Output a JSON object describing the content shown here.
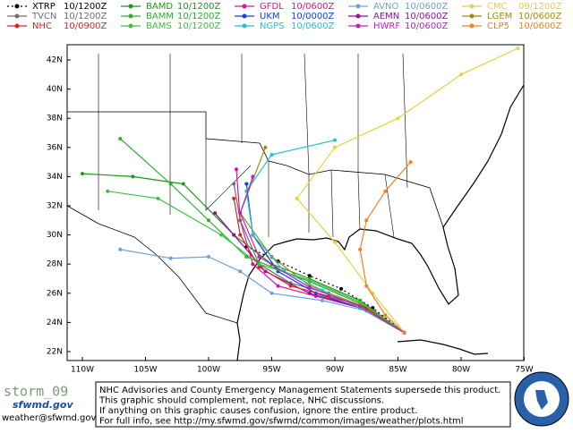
{
  "legend": [
    {
      "name": "XTRP",
      "time": "10/1200Z",
      "color": "#000000"
    },
    {
      "name": "BAMD",
      "time": "10/1200Z",
      "color": "#1a9a1a"
    },
    {
      "name": "GFDL",
      "time": "10/0600Z",
      "color": "#e0109a"
    },
    {
      "name": "AVNO",
      "time": "10/0600Z",
      "color": "#6fa0d8"
    },
    {
      "name": "CMC",
      "time": "09/1200Z",
      "color": "#e8d040"
    },
    {
      "name": "TVCN",
      "time": "10/1200Z",
      "color": "#707070"
    },
    {
      "name": "BAMM",
      "time": "10/1200Z",
      "color": "#30b030"
    },
    {
      "name": "UKM",
      "time": "10/0000Z",
      "color": "#1040e0"
    },
    {
      "name": "AEMN",
      "time": "10/0600Z",
      "color": "#9010a0"
    },
    {
      "name": "LGEM",
      "time": "10/0600Z",
      "color": "#a08a10"
    },
    {
      "name": "NHC",
      "time": "10/0900Z",
      "color": "#e02020"
    },
    {
      "name": "BAMS",
      "time": "10/1200Z",
      "color": "#40c040"
    },
    {
      "name": "NGPS",
      "time": "10/0600Z",
      "color": "#20c0d0"
    },
    {
      "name": "HWRF",
      "time": "10/0600Z",
      "color": "#c020c0"
    },
    {
      "name": "CLP5",
      "time": "10/0600Z",
      "color": "#f08020"
    }
  ],
  "tracks": [
    {
      "model": "XTRP",
      "lon": [
        -84.5,
        -87,
        -89.5,
        -92,
        -94.5,
        -97
      ],
      "lat": [
        23.3,
        25,
        26.3,
        27.2,
        28.2,
        29.2
      ]
    },
    {
      "model": "BAMD",
      "lon": [
        -84.5,
        -88,
        -92,
        -95,
        -98,
        -102,
        -106,
        -110
      ],
      "lat": [
        23.3,
        25.5,
        27,
        28,
        30,
        33.5,
        34,
        34.2
      ]
    },
    {
      "model": "GFDL",
      "lon": [
        -84.5,
        -88,
        -91.5,
        -94.5,
        -96.5,
        -97.5,
        -97.8
      ],
      "lat": [
        23.3,
        25,
        25.8,
        26.5,
        28,
        31,
        34.5
      ]
    },
    {
      "model": "AVNO",
      "lon": [
        -84.5,
        -87.5,
        -91,
        -95,
        -97.5,
        -100,
        -103,
        -107
      ],
      "lat": [
        23.3,
        24.8,
        25.5,
        26,
        27.5,
        28.5,
        28.4,
        29
      ]
    },
    {
      "model": "CMC",
      "lon": [
        -84.5,
        -87,
        -90,
        -93,
        -90,
        -85,
        -80,
        -75.5
      ],
      "lat": [
        23.3,
        26,
        29.5,
        32.5,
        36,
        38,
        41,
        42.8
      ]
    },
    {
      "model": "TVCN",
      "lon": [
        -84.5,
        -87.5,
        -90.5,
        -93.5,
        -96,
        -97.5,
        -98
      ],
      "lat": [
        23.3,
        25,
        26,
        26.7,
        28,
        31,
        33.5
      ]
    },
    {
      "model": "BAMM",
      "lon": [
        -84.5,
        -88,
        -92,
        -97,
        -100,
        -103,
        -107
      ],
      "lat": [
        23.3,
        25.3,
        26.8,
        28.5,
        31,
        33.5,
        36.6
      ]
    },
    {
      "model": "UKM",
      "lon": [
        -84.5,
        -88,
        -91.5,
        -94.5,
        -96.5,
        -97
      ],
      "lat": [
        23.3,
        25,
        26,
        27.5,
        30,
        33.5
      ]
    },
    {
      "model": "AEMN",
      "lon": [
        -84.5,
        -88,
        -92,
        -95.5,
        -98,
        -99.5
      ],
      "lat": [
        23.3,
        25,
        26,
        27.5,
        30,
        31.5
      ]
    },
    {
      "model": "LGEM",
      "lon": [
        -84.5,
        -88,
        -92,
        -95,
        -97.5,
        -95.5
      ],
      "lat": [
        23.3,
        25.2,
        26.5,
        28.5,
        31.5,
        36
      ]
    },
    {
      "model": "NHC",
      "lon": [
        -84.5,
        -87.5,
        -90.5,
        -93.5,
        -96,
        -97.5,
        -98
      ],
      "lat": [
        23.3,
        25,
        25.8,
        26.5,
        27.8,
        30,
        32.5
      ]
    },
    {
      "model": "BAMS",
      "lon": [
        -84.5,
        -88,
        -92,
        -96,
        -99,
        -104,
        -108
      ],
      "lat": [
        23.3,
        25.4,
        26.9,
        28,
        30,
        32.5,
        33
      ]
    },
    {
      "model": "NGPS",
      "lon": [
        -84.5,
        -88,
        -91,
        -94,
        -96.5,
        -97,
        -95,
        -90
      ],
      "lat": [
        23.3,
        25,
        26.2,
        27.5,
        30,
        33,
        35.5,
        36.5
      ]
    },
    {
      "model": "HWRF",
      "lon": [
        -84.5,
        -88,
        -92,
        -96,
        -97.5,
        -96.5
      ],
      "lat": [
        23.3,
        25.1,
        26.4,
        28.5,
        31.5,
        34
      ]
    },
    {
      "model": "CLP5",
      "lon": [
        -84.5,
        -86,
        -87.5,
        -88,
        -87.5,
        -86,
        -84
      ],
      "lat": [
        23.3,
        24.5,
        26.5,
        29,
        31,
        33,
        35
      ]
    }
  ],
  "lat_ticks": [
    {
      "value": 42,
      "label": "42N"
    },
    {
      "value": 40,
      "label": "40N"
    },
    {
      "value": 38,
      "label": "38N"
    },
    {
      "value": 36,
      "label": "36N"
    },
    {
      "value": 34,
      "label": "34N"
    },
    {
      "value": 32,
      "label": "32N"
    },
    {
      "value": 30,
      "label": "30N"
    },
    {
      "value": 28,
      "label": "28N"
    },
    {
      "value": 26,
      "label": "26N"
    },
    {
      "value": 24,
      "label": "24N"
    },
    {
      "value": 22,
      "label": "22N"
    }
  ],
  "lon_ticks": [
    {
      "value": -110,
      "label": "110W"
    },
    {
      "value": -105,
      "label": "105W"
    },
    {
      "value": -100,
      "label": "100W"
    },
    {
      "value": -95,
      "label": "95W"
    },
    {
      "value": -90,
      "label": "90W"
    },
    {
      "value": -85,
      "label": "85W"
    },
    {
      "value": -80,
      "label": "80W"
    },
    {
      "value": -75,
      "label": "75W"
    }
  ],
  "footer": {
    "storm": "storm_09",
    "logo": "sfwmd.gov",
    "email": "weather@sfwmd.gov",
    "notice": [
      "NHC Advisories and County Emergency Management Statements supersede this product.",
      "This graphic should complement, not replace, NHC discussions.",
      "If anything on this graphic causes confusion, ignore the entire product.",
      "For full info, see  http://my.sfwmd.gov/sfwmd/common/images/weather/plots.html"
    ]
  }
}
